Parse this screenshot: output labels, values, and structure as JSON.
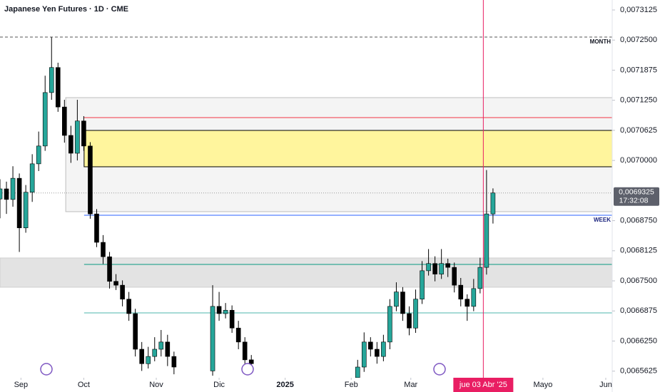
{
  "chart_data": {
    "type": "candlestick",
    "title": "Japanese Yen Futures · 1D · CME",
    "xlim": [
      0,
      190
    ],
    "ylim": [
      0.0065488,
      0.0073332
    ],
    "up_color": "#26a69a",
    "down_color": "#000000",
    "x": [
      0,
      2,
      4,
      6,
      8,
      10,
      12,
      14,
      16,
      18,
      20,
      22,
      24,
      26,
      28,
      30,
      32,
      34,
      36,
      38,
      40,
      42,
      44,
      46,
      48,
      50,
      52,
      54,
      66,
      68,
      70,
      72,
      74,
      76,
      78,
      111,
      113,
      115,
      117,
      119,
      121,
      123,
      125,
      127,
      129,
      131,
      133,
      135,
      137,
      139,
      141,
      143,
      145,
      147,
      149,
      151,
      153
    ],
    "open": [
      0.00692,
      0.006941,
      0.006919,
      0.006963,
      0.00686,
      0.006934,
      0.006993,
      0.00703,
      0.007141,
      0.007193,
      0.007111,
      0.007052,
      0.007015,
      0.007082,
      0.00703,
      0.006889,
      0.00683,
      0.0068,
      0.006749,
      0.006741,
      0.006712,
      0.006682,
      0.006608,
      0.006578,
      0.006593,
      0.006608,
      0.006623,
      0.006593,
      0.006563,
      0.006697,
      0.006682,
      0.006689,
      0.006652,
      0.006623,
      0.006586,
      0.006549,
      0.006571,
      0.006623,
      0.006608,
      0.006593,
      0.006623,
      0.006697,
      0.006727,
      0.006682,
      0.006652,
      0.006712,
      0.006771,
      0.006786,
      0.006764,
      0.006786,
      0.006778,
      0.006741,
      0.006712,
      0.006697,
      0.006734,
      0.006778,
      0.006889
    ],
    "high": [
      0.006961,
      0.006956,
      0.006988,
      0.006973,
      0.006949,
      0.007013,
      0.00706,
      0.007176,
      0.007256,
      0.007203,
      0.007126,
      0.007072,
      0.007126,
      0.007092,
      0.007038,
      0.006899,
      0.006845,
      0.00681,
      0.006764,
      0.006751,
      0.006727,
      0.006692,
      0.006623,
      0.006613,
      0.006633,
      0.006648,
      0.006638,
      0.006603,
      0.006741,
      0.006727,
      0.006704,
      0.006699,
      0.006667,
      0.006633,
      0.006596,
      0.006586,
      0.006643,
      0.006633,
      0.006623,
      0.006638,
      0.006712,
      0.006747,
      0.006737,
      0.006697,
      0.006732,
      0.006791,
      0.006816,
      0.006801,
      0.006816,
      0.006796,
      0.006788,
      0.006756,
      0.006722,
      0.006754,
      0.006798,
      0.00698,
      0.006942
    ],
    "low": [
      0.00688,
      0.006889,
      0.006904,
      0.00681,
      0.00685,
      0.006914,
      0.006978,
      0.00702,
      0.007126,
      0.007101,
      0.007037,
      0.006995,
      0.007,
      0.00702,
      0.006879,
      0.00682,
      0.006785,
      0.006734,
      0.006731,
      0.006697,
      0.006667,
      0.006593,
      0.006563,
      0.006568,
      0.006583,
      0.006593,
      0.006573,
      0.006556,
      0.006553,
      0.006667,
      0.006672,
      0.006642,
      0.006608,
      0.006571,
      0.006558,
      0.00655,
      0.006561,
      0.006593,
      0.006578,
      0.006583,
      0.006608,
      0.006687,
      0.006667,
      0.006637,
      0.006642,
      0.006702,
      0.006761,
      0.006749,
      0.006754,
      0.006758,
      0.006726,
      0.006697,
      0.006667,
      0.006687,
      0.006724,
      0.006763,
      0.006869
    ],
    "close": [
      0.006941,
      0.006919,
      0.006963,
      0.00686,
      0.006934,
      0.006993,
      0.00703,
      0.007141,
      0.007193,
      0.007111,
      0.007052,
      0.007015,
      0.007082,
      0.00703,
      0.006889,
      0.00683,
      0.0068,
      0.006749,
      0.006741,
      0.006712,
      0.006682,
      0.006608,
      0.006578,
      0.006593,
      0.006608,
      0.006623,
      0.006593,
      0.006571,
      0.006697,
      0.006682,
      0.006689,
      0.006652,
      0.006623,
      0.006586,
      0.006578,
      0.006571,
      0.006623,
      0.006608,
      0.006593,
      0.006623,
      0.006697,
      0.006727,
      0.006682,
      0.006652,
      0.006712,
      0.006771,
      0.006786,
      0.006764,
      0.006786,
      0.006778,
      0.006741,
      0.006712,
      0.006697,
      0.006734,
      0.006778,
      0.006889,
      0.0069325
    ],
    "zones": [
      {
        "from": 0.0068937,
        "to": 0.0071305,
        "x_from": 20.4,
        "color": "#f4f4f4",
        "border": "#bdbdbd"
      },
      {
        "from": 0.0067368,
        "to": 0.0067975,
        "x_from": 0,
        "color": "#e3e3e3",
        "border": "#cfcfcf"
      },
      {
        "from": 0.0069869,
        "to": 0.0070624,
        "x_from": 26.1,
        "color": "#fff59d",
        "border": "#000000"
      }
    ],
    "levels": [
      {
        "value": 0.0072563,
        "x_from": 0,
        "color": "#555555",
        "dashed": true,
        "label": "MONTH"
      },
      {
        "value": 0.007089,
        "x_from": 26.1,
        "color": "#f23645"
      },
      {
        "value": 0.0068863,
        "x_from": 26.1,
        "color": "#2962ff",
        "label": "WEEK"
      },
      {
        "value": 0.0067841,
        "x_from": 26.1,
        "color": "#089981"
      },
      {
        "value": 0.0066835,
        "x_from": 26.1,
        "color": "#4db6ac"
      }
    ],
    "yticks": [
      {
        "value": 0.0073125,
        "label": "0,0073125"
      },
      {
        "value": 0.00725,
        "label": "0,0072500"
      },
      {
        "value": 0.0071875,
        "label": "0,0071875"
      },
      {
        "value": 0.007125,
        "label": "0,0071250"
      },
      {
        "value": 0.0070625,
        "label": "0,0070625"
      },
      {
        "value": 0.007,
        "label": "0,0070000"
      },
      {
        "value": 0.006875,
        "label": "0,0068750"
      },
      {
        "value": 0.0068125,
        "label": "0,0068125"
      },
      {
        "value": 0.00675,
        "label": "0,0067500"
      },
      {
        "value": 0.0066875,
        "label": "0,0066875"
      },
      {
        "value": 0.006625,
        "label": "0,0066250"
      },
      {
        "value": 0.0065625,
        "label": "0,0065625"
      }
    ],
    "xticks": [
      {
        "value": 6.5,
        "label": "Sep"
      },
      {
        "value": 26,
        "label": "Oct"
      },
      {
        "value": 48.5,
        "label": "Nov"
      },
      {
        "value": 68,
        "label": "Dic"
      },
      {
        "value": 88.5,
        "label": "2025"
      },
      {
        "value": 109,
        "label": "Feb"
      },
      {
        "value": 127.5,
        "label": "Mar"
      },
      {
        "value": 168.5,
        "label": "Mayo"
      },
      {
        "value": 188,
        "label": "Jun"
      }
    ],
    "current_price": {
      "value": 0.0069325,
      "label": "0,0069325",
      "countdown": "17:32:08"
    },
    "crosshair": {
      "x": 150,
      "label": "jue 03 Abr '25"
    }
  }
}
